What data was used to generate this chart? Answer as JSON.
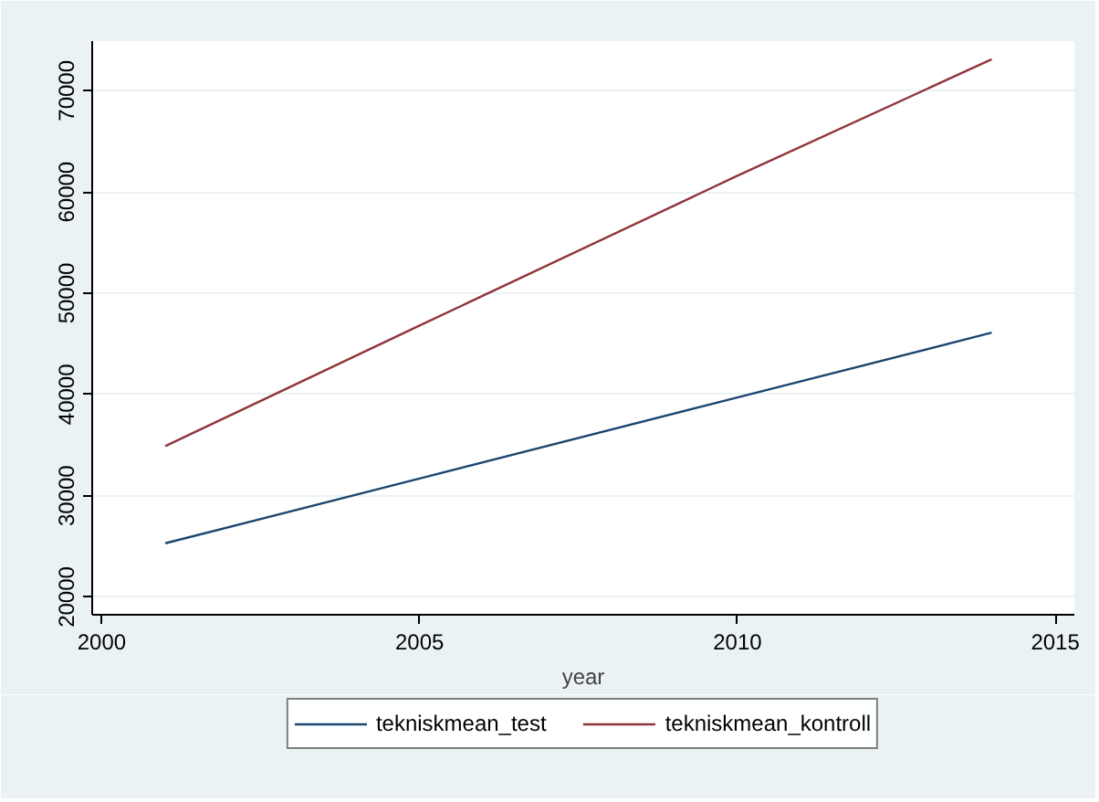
{
  "chart_data": {
    "type": "line",
    "xlabel": "year",
    "x": [
      2001,
      2005,
      2010,
      2014
    ],
    "series": [
      {
        "name": "tekniskmean_test",
        "color": "#1a476f",
        "values": [
          25300,
          31700,
          39700,
          46100
        ]
      },
      {
        "name": "tekniskmean_kontroll",
        "color": "#90353b",
        "values": [
          34900,
          46800,
          61600,
          73100
        ]
      }
    ],
    "xlim": [
      1999.85,
      2015.3
    ],
    "ylim": [
      18240,
      74900
    ],
    "xticks": [
      2000,
      2005,
      2010,
      2015
    ],
    "yticks": [
      20000,
      30000,
      40000,
      50000,
      60000,
      70000
    ],
    "grid": "y",
    "legend": "bottom",
    "marker": "none",
    "line_style": "solid"
  }
}
